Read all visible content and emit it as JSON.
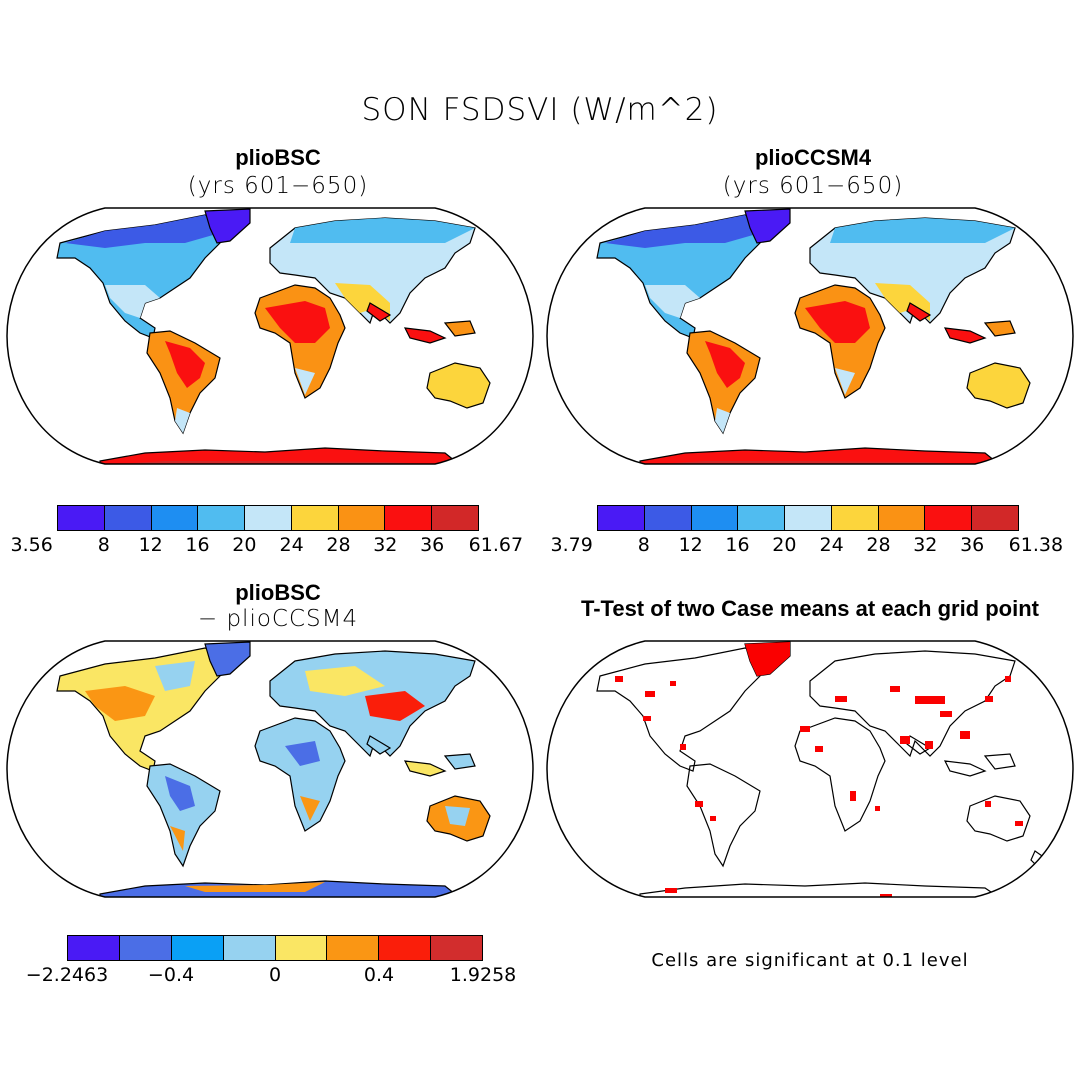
{
  "title": "SON FSDSVI (W/m^2)",
  "panels": [
    {
      "title": "plioBSC",
      "subtitle": "(yrs 601−650)",
      "colorbar": {
        "colors": [
          "#4a1af5",
          "#3c5ae6",
          "#1e8ef2",
          "#50bcf0",
          "#c4e6f8",
          "#fcd53c",
          "#fa9214",
          "#fa1010",
          "#d22828"
        ],
        "labels": [
          "3.56",
          "8",
          "12",
          "16",
          "20",
          "24",
          "28",
          "32",
          "36",
          "61.67"
        ]
      }
    },
    {
      "title": "plioCCSM4",
      "subtitle": "(yrs 601−650)",
      "colorbar": {
        "colors": [
          "#4a1af5",
          "#3c5ae6",
          "#1e8ef2",
          "#50bcf0",
          "#c4e6f8",
          "#fcd53c",
          "#fa9214",
          "#fa1010",
          "#d22828"
        ],
        "labels": [
          "3.79",
          "8",
          "12",
          "16",
          "20",
          "24",
          "28",
          "32",
          "36",
          "61.38"
        ]
      }
    },
    {
      "title": "plioBSC",
      "subtitle": "− plioCCSM4",
      "colorbar": {
        "colors": [
          "#4a1af5",
          "#4b6ee6",
          "#0aa0f5",
          "#96d2f0",
          "#fae664",
          "#fa9614",
          "#fa1e0a",
          "#d22d2d"
        ],
        "labels": [
          "−2.2463",
          "−0.4",
          "0",
          "0.4",
          "1.9258"
        ]
      }
    },
    {
      "title": "T-Test of two Case means at each grid point",
      "note": "Cells are significant at 0.1 level"
    }
  ]
}
